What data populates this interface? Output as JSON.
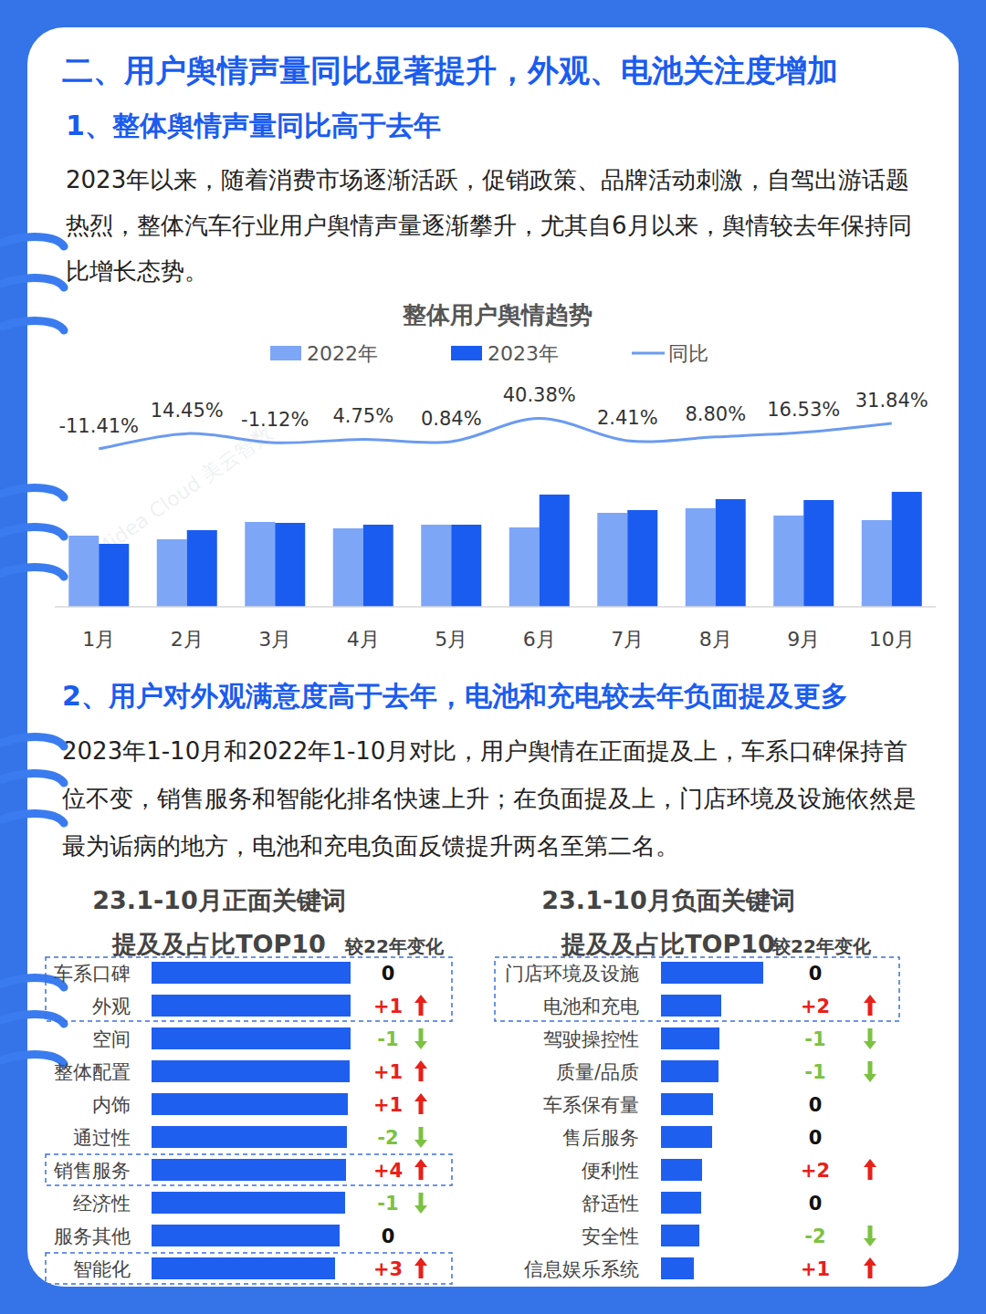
{
  "title": "二、用户舆情声量同比显著提升，外观、电池关注度增加",
  "section1": {
    "heading": "1、整体舆情声量同比高于去年",
    "paragraph": "2023年以来，随着消费市场逐渐活跃，促销政策、品牌活动刺激，自驾出游话题热烈，整体汽车行业用户舆情声量逐渐攀升，尤其自6月以来，舆情较去年保持同比增长态势。"
  },
  "section2": {
    "heading": "2、用户对外观满意度高于去年，电池和充电较去年负面提及更多",
    "paragraph": "2023年1-10月和2022年1-10月对比，用户舆情在正面提及上，车系口碑保持首位不变，销售服务和智能化排名快速上升；在负面提及上，门店环境及设施依然是最为诟病的地方，电池和充电负面反馈提升两名至第二名。"
  },
  "watermark": "Midea Cloud 美云智数",
  "chart_data": [
    {
      "type": "bar",
      "title": "整体用户舆情趋势",
      "categories": [
        "1月",
        "2月",
        "3月",
        "4月",
        "5月",
        "6月",
        "7月",
        "8月",
        "9月",
        "10月"
      ],
      "series": [
        {
          "name": "2022年",
          "type": "bar",
          "color": "#7ea6f6",
          "values": [
            78,
            74,
            93,
            86,
            90,
            87,
            103,
            108,
            100,
            95
          ]
        },
        {
          "name": "2023年",
          "type": "bar",
          "color": "#1a5cf0",
          "values": [
            69,
            84,
            92,
            90,
            90,
            123,
            106,
            118,
            117,
            126
          ]
        },
        {
          "name": "同比",
          "type": "line",
          "axis": "y2",
          "color": "#6b9bf0",
          "data_labels": true,
          "values": [
            -11.41,
            14.45,
            -1.12,
            4.75,
            0.84,
            40.38,
            2.41,
            8.8,
            16.53,
            31.84
          ],
          "value_labels": [
            "-11.41%",
            "14.45%",
            "-1.12%",
            "4.75%",
            "0.84%",
            "40.38%",
            "2.41%",
            "8.80%",
            "16.53%",
            "31.84%"
          ]
        }
      ],
      "ylim": [
        0,
        245
      ],
      "y2lim": [
        -280,
        100
      ],
      "legend": "top",
      "tick_labels": "x"
    },
    {
      "type": "bar",
      "orientation": "horizontal",
      "title": "23.1-10月正面关键词提及及占比TOP10",
      "change_header": "较22年变化",
      "categories": [
        "车系口碑",
        "外观",
        "空间",
        "整体配置",
        "内饰",
        "通过性",
        "销售服务",
        "经济性",
        "服务其他",
        "智能化"
      ],
      "values": [
        218,
        218,
        218,
        217,
        215,
        214,
        213,
        212,
        206,
        201
      ],
      "changes": [
        0,
        1,
        -1,
        1,
        1,
        -2,
        4,
        -1,
        0,
        3
      ],
      "change_labels": [
        "0",
        "+1",
        "-1",
        "+1",
        "+1",
        "-2",
        "+4",
        "-1",
        "0",
        "+3"
      ],
      "highlights": [
        [
          0,
          1
        ],
        [
          6
        ],
        [
          9
        ]
      ],
      "color": "#1f5ff0",
      "xlim": [
        0,
        220
      ],
      "tick_labels": "y"
    },
    {
      "type": "bar",
      "orientation": "horizontal",
      "title": "23.1-10月负面关键词提及及占比TOP10",
      "change_header": "较22年变化",
      "categories": [
        "门店环境及设施",
        "电池和充电",
        "驾驶操控性",
        "质量/品质",
        "车系保有量",
        "售后服务",
        "便利性",
        "舒适性",
        "安全性",
        "信息娱乐系统"
      ],
      "values": [
        112,
        66,
        64,
        63,
        57,
        56,
        45,
        44,
        42,
        36
      ],
      "changes": [
        0,
        2,
        -1,
        -1,
        0,
        0,
        2,
        0,
        -2,
        1
      ],
      "change_labels": [
        "0",
        "+2",
        "-1",
        "-1",
        "0",
        "0",
        "+2",
        "0",
        "-2",
        "+1"
      ],
      "highlights": [
        [
          0,
          1
        ]
      ],
      "color": "#1f5ff0",
      "xlim": [
        0,
        220
      ],
      "tick_labels": "y"
    }
  ]
}
